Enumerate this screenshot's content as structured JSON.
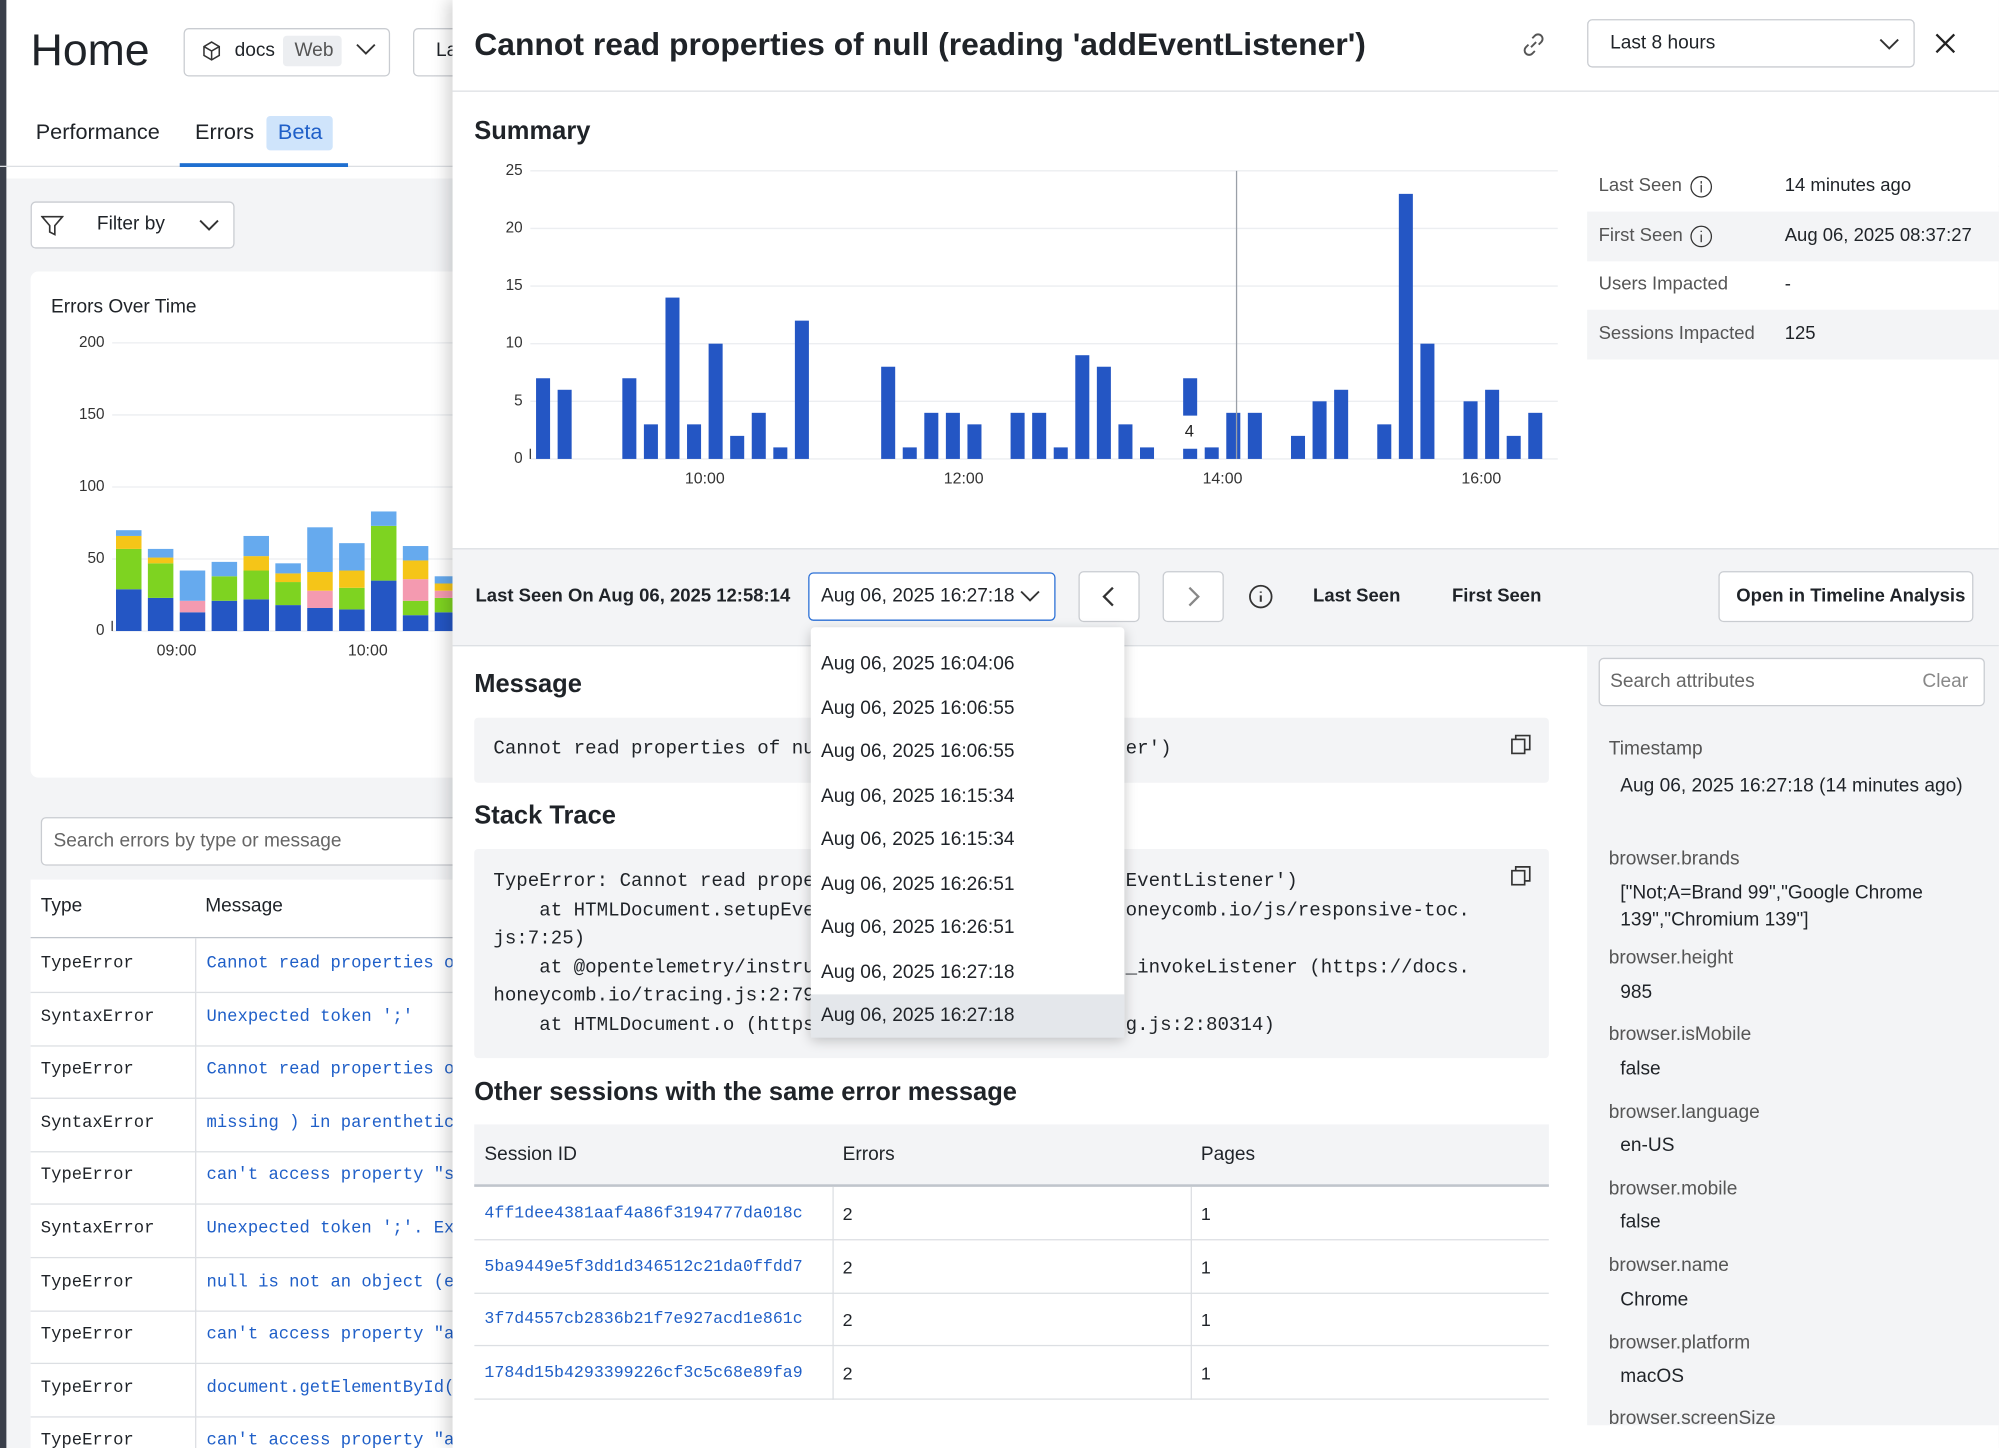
{
  "chart_data": [
    {
      "type": "stacked_bar",
      "title": "Errors Over Time",
      "categories": [
        null,
        null,
        "09:00",
        null,
        null,
        null,
        null,
        null,
        "10:00",
        null,
        null
      ],
      "series": [
        {
          "color": "#2456c4",
          "values": [
            29,
            23,
            13,
            21,
            22,
            18,
            16,
            15,
            35,
            11,
            13
          ]
        },
        {
          "color": "#7ed321",
          "values": [
            28,
            24,
            0,
            17,
            20,
            16,
            0,
            15,
            38,
            10,
            10
          ]
        },
        {
          "color": "#f49ab0",
          "values": [
            0,
            0,
            8,
            0,
            0,
            0,
            12,
            0,
            0,
            15,
            5
          ]
        },
        {
          "color": "#f5c518",
          "values": [
            9,
            4,
            0,
            0,
            10,
            6,
            13,
            12,
            0,
            13,
            5
          ]
        },
        {
          "color": "#66aaee",
          "values": [
            4,
            6,
            21,
            10,
            14,
            7,
            31,
            19,
            10,
            10,
            5
          ]
        }
      ],
      "ylim": [
        0,
        200
      ],
      "yticks": [
        0,
        50,
        100,
        150,
        200
      ],
      "grid": true
    },
    {
      "type": "bar",
      "title": "Summary",
      "categories": [
        null,
        null,
        null,
        null,
        null,
        null,
        null,
        null,
        "10:00",
        null,
        null,
        null,
        null,
        null,
        null,
        null,
        null,
        null,
        null,
        null,
        "12:00",
        null,
        null,
        null,
        null,
        null,
        null,
        null,
        null,
        null,
        null,
        null,
        "14:00",
        null,
        null,
        null,
        null,
        null,
        null,
        null,
        null,
        null,
        null,
        null,
        "16:00",
        null,
        null
      ],
      "values": [
        7,
        6,
        0,
        0,
        7,
        3,
        14,
        3,
        10,
        2,
        4,
        1,
        12,
        0,
        0,
        0,
        8,
        1,
        4,
        4,
        3,
        0,
        4,
        4,
        1,
        9,
        8,
        3,
        1,
        0,
        7,
        1,
        4,
        4,
        0,
        2,
        5,
        6,
        0,
        3,
        23,
        10,
        0,
        5,
        6,
        2,
        4
      ],
      "color": "#2456c4",
      "ylim": [
        0,
        25
      ],
      "yticks": [
        0,
        5,
        10,
        15,
        20,
        25
      ],
      "grid": true
    }
  ],
  "home": {
    "title": "Home",
    "project": "docs",
    "environment": "Web",
    "time_button": "La",
    "tabs": [
      "Performance",
      "Errors"
    ],
    "badge": "Beta",
    "filter": "Filter by",
    "search_placeholder": "Search errors by type or message",
    "table": {
      "columns": [
        "Type",
        "Message"
      ],
      "rows": [
        [
          "TypeError",
          "Cannot read properties of"
        ],
        [
          "SyntaxError",
          "Unexpected token ';'"
        ],
        [
          "TypeError",
          "Cannot read properties of"
        ],
        [
          "SyntaxError",
          "missing ) in parenthetica"
        ],
        [
          "TypeError",
          "can't access property \"st"
        ],
        [
          "SyntaxError",
          "Unexpected token ';'. Exp"
        ],
        [
          "TypeError",
          "null is not an object (ev"
        ],
        [
          "TypeError",
          "can't access property \"ad"
        ],
        [
          "TypeError",
          "document.getElementById(."
        ],
        [
          "TypeError",
          "can't access property \"ad"
        ]
      ]
    }
  },
  "panel": {
    "title": "Cannot read properties of null (reading 'addEventListener')",
    "time_range": "Last 8 hours",
    "stats": [
      {
        "label": "Last Seen",
        "value": "14 minutes ago"
      },
      {
        "label": "First Seen",
        "value": "Aug 06, 2025 08:37:27"
      },
      {
        "label": "Users Impacted",
        "value": "-"
      },
      {
        "label": "Sessions Impacted",
        "value": 125
      }
    ],
    "toolbar": {
      "last_seen_on": "Last Seen On Aug 06, 2025 12:58:14",
      "selected": "Aug 06, 2025 16:27:18",
      "last_seen": "Last Seen",
      "first_seen": "First Seen",
      "timeline_button": "Open in Timeline Analysis"
    },
    "dropdown_options": [
      "Aug 06, 2025 16:04:06",
      "Aug 06, 2025 16:06:55",
      "Aug 06, 2025 16:06:55",
      "Aug 06, 2025 16:15:34",
      "Aug 06, 2025 16:15:34",
      "Aug 06, 2025 16:26:51",
      "Aug 06, 2025 16:26:51",
      "Aug 06, 2025 16:27:18",
      "Aug 06, 2025 16:27:18"
    ],
    "message": {
      "heading": "Message",
      "fragments": [
        "Cannot read properties of nu",
        "er')"
      ]
    },
    "stack_trace": {
      "heading": "Stack Trace",
      "lines": [
        [
          "TypeError: Cannot read prope",
          "EventListener')"
        ],
        [
          "    at HTMLDocument.setupEve",
          "oneycomb.io/js/responsive-toc."
        ],
        [
          "js:7:25)"
        ],
        [
          "    at @opentelemetry/instru",
          "_invokeListener (https://docs."
        ],
        [
          "honeycomb.io/tracing.js:2:79"
        ],
        [
          "    at HTMLDocument.o (https",
          "g.js:2:80314)"
        ]
      ]
    },
    "sessions": {
      "heading": "Other sessions with the same error message",
      "columns": [
        "Session ID",
        "Errors",
        "Pages"
      ],
      "rows": [
        [
          "4ff1dee4381aaf4a86f3194777da018c",
          2,
          1
        ],
        [
          "5ba9449e5f3dd1d346512c21da0ffdd7",
          2,
          1
        ],
        [
          "3f7d4557cb2836b21f7e927acd1e861c",
          2,
          1
        ],
        [
          "1784d15b4293399226cf3c5c68e89fa9",
          2,
          1
        ]
      ]
    },
    "attributes": {
      "search_placeholder": "Search attributes",
      "clear": "Clear",
      "items": [
        {
          "key": "Timestamp",
          "value": "Aug 06, 2025 16:27:18 (14 minutes ago)"
        },
        {
          "key": "browser.brands",
          "value": "[\"Not;A=Brand 99\",\"Google Chrome 139\",\"Chromium 139\"]"
        },
        {
          "key": "browser.height",
          "value": 985
        },
        {
          "key": "browser.isMobile",
          "value": "false"
        },
        {
          "key": "browser.language",
          "value": "en-US"
        },
        {
          "key": "browser.mobile",
          "value": "false"
        },
        {
          "key": "browser.name",
          "value": "Chrome"
        },
        {
          "key": "browser.platform",
          "value": "macOS"
        },
        {
          "key": "browser.screenSize"
        }
      ]
    }
  }
}
